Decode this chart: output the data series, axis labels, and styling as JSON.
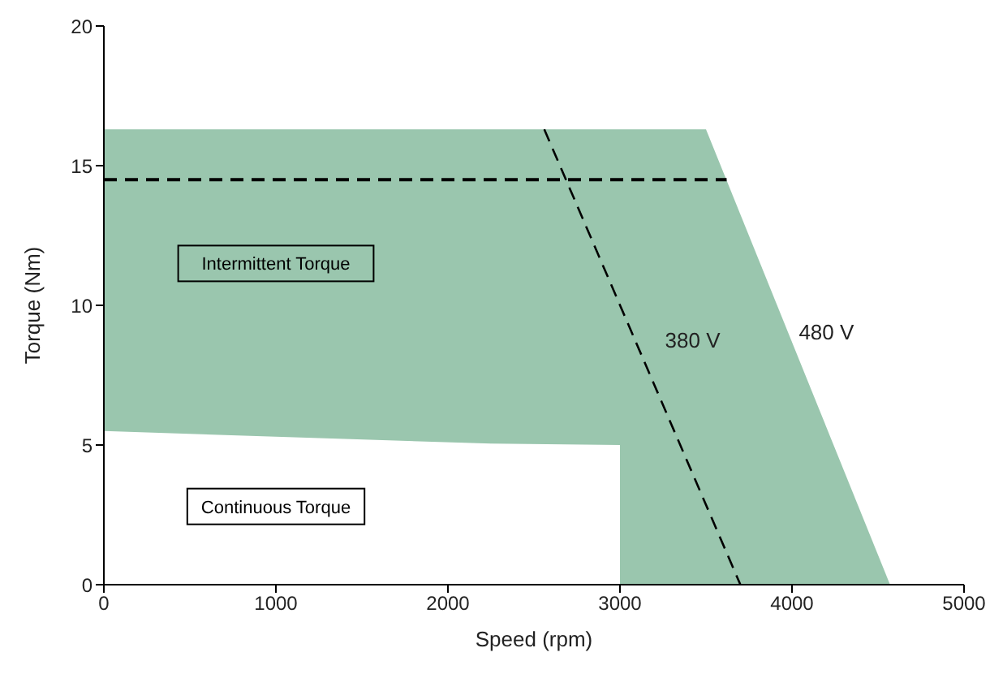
{
  "chart_data": {
    "type": "area",
    "xlabel": "Speed (rpm)",
    "ylabel": "Torque (Nm)",
    "xlim": [
      0,
      5000
    ],
    "ylim": [
      0,
      20
    ],
    "xticks": [
      0,
      1000,
      2000,
      3000,
      4000,
      5000
    ],
    "yticks": [
      0,
      5,
      10,
      15,
      20
    ],
    "grid": false,
    "legend": false,
    "series": [
      {
        "color": "#9ac6ae",
        "x": [
          0,
          3500,
          4570
        ],
        "values": [
          16.3,
          16.3,
          0
        ]
      },
      {
        "color": "#ffffff",
        "x": [
          0,
          2250,
          3000,
          3000
        ],
        "values": [
          5.5,
          5.05,
          5.0,
          0
        ]
      },
      {
        "type": "line",
        "color": "#000000",
        "x": [
          0,
          3620
        ],
        "values": [
          14.5,
          14.5
        ],
        "line_style": "dashed"
      },
      {
        "type": "line",
        "color": "#000000",
        "name": "380 V",
        "x": [
          2560,
          3700
        ],
        "values": [
          16.3,
          0
        ],
        "line_style": "dashed"
      }
    ],
    "annotations": [
      "Intermittent Torque",
      "Continuous Torque",
      "480 V"
    ]
  }
}
